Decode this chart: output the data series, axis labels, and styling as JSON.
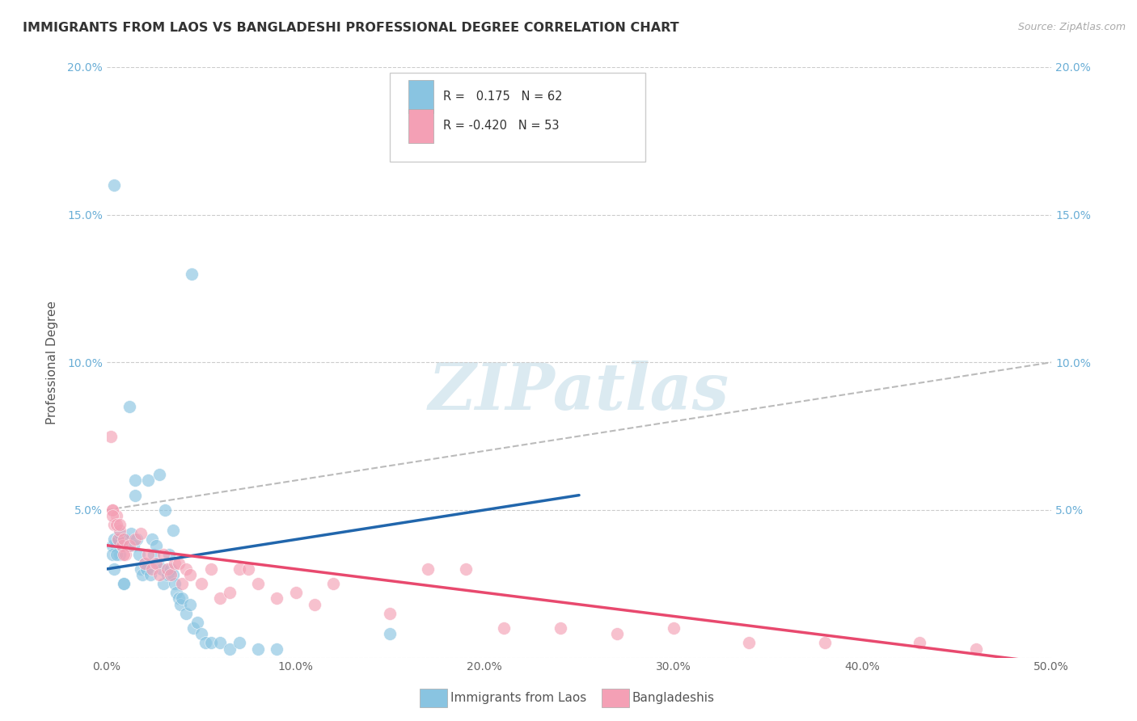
{
  "title": "IMMIGRANTS FROM LAOS VS BANGLADESHI PROFESSIONAL DEGREE CORRELATION CHART",
  "source": "Source: ZipAtlas.com",
  "ylabel": "Professional Degree",
  "xlim": [
    0.0,
    0.5
  ],
  "ylim": [
    0.0,
    0.2
  ],
  "xticks": [
    0.0,
    0.1,
    0.2,
    0.3,
    0.4,
    0.5
  ],
  "yticks": [
    0.0,
    0.05,
    0.1,
    0.15,
    0.2
  ],
  "xticklabels": [
    "0.0%",
    "10.0%",
    "20.0%",
    "30.0%",
    "40.0%",
    "50.0%"
  ],
  "yticklabels": [
    "",
    "5.0%",
    "10.0%",
    "15.0%",
    "20.0%"
  ],
  "legend_label1": "Immigrants from Laos",
  "legend_label2": "Bangladeshis",
  "blue_color": "#89c4e1",
  "pink_color": "#f4a0b5",
  "blue_line_color": "#2166ac",
  "pink_line_color": "#e8496e",
  "dashed_line_color": "#bbbbbb",
  "watermark": "ZIPatlas",
  "background_color": "#ffffff",
  "grid_color": "#cccccc",
  "blue_scatter_x": [
    0.004,
    0.005,
    0.006,
    0.007,
    0.008,
    0.009,
    0.01,
    0.011,
    0.012,
    0.013,
    0.014,
    0.015,
    0.016,
    0.017,
    0.018,
    0.019,
    0.02,
    0.021,
    0.022,
    0.023,
    0.024,
    0.025,
    0.026,
    0.027,
    0.028,
    0.029,
    0.03,
    0.031,
    0.032,
    0.033,
    0.034,
    0.035,
    0.036,
    0.037,
    0.038,
    0.039,
    0.04,
    0.042,
    0.044,
    0.046,
    0.048,
    0.05,
    0.052,
    0.055,
    0.06,
    0.065,
    0.07,
    0.08,
    0.09,
    0.003,
    0.003,
    0.004,
    0.004,
    0.005,
    0.006,
    0.007,
    0.008,
    0.009,
    0.015,
    0.035,
    0.045,
    0.15
  ],
  "blue_scatter_y": [
    0.16,
    0.038,
    0.04,
    0.035,
    0.04,
    0.025,
    0.04,
    0.038,
    0.085,
    0.042,
    0.038,
    0.055,
    0.04,
    0.035,
    0.03,
    0.028,
    0.032,
    0.03,
    0.06,
    0.028,
    0.04,
    0.035,
    0.038,
    0.032,
    0.062,
    0.03,
    0.025,
    0.05,
    0.028,
    0.035,
    0.03,
    0.028,
    0.025,
    0.022,
    0.02,
    0.018,
    0.02,
    0.015,
    0.018,
    0.01,
    0.012,
    0.008,
    0.005,
    0.005,
    0.005,
    0.003,
    0.005,
    0.003,
    0.003,
    0.038,
    0.035,
    0.04,
    0.03,
    0.035,
    0.04,
    0.042,
    0.038,
    0.025,
    0.06,
    0.043,
    0.13,
    0.008
  ],
  "pink_scatter_x": [
    0.002,
    0.003,
    0.004,
    0.005,
    0.006,
    0.007,
    0.008,
    0.009,
    0.01,
    0.012,
    0.015,
    0.018,
    0.02,
    0.022,
    0.024,
    0.026,
    0.028,
    0.03,
    0.032,
    0.034,
    0.036,
    0.038,
    0.04,
    0.042,
    0.044,
    0.05,
    0.055,
    0.06,
    0.065,
    0.07,
    0.075,
    0.08,
    0.09,
    0.1,
    0.11,
    0.12,
    0.15,
    0.17,
    0.19,
    0.21,
    0.24,
    0.27,
    0.3,
    0.34,
    0.38,
    0.43,
    0.46,
    0.003,
    0.003,
    0.005,
    0.007,
    0.009
  ],
  "pink_scatter_y": [
    0.075,
    0.05,
    0.045,
    0.048,
    0.04,
    0.043,
    0.038,
    0.04,
    0.035,
    0.038,
    0.04,
    0.042,
    0.032,
    0.035,
    0.03,
    0.032,
    0.028,
    0.035,
    0.03,
    0.028,
    0.032,
    0.032,
    0.025,
    0.03,
    0.028,
    0.025,
    0.03,
    0.02,
    0.022,
    0.03,
    0.03,
    0.025,
    0.02,
    0.022,
    0.018,
    0.025,
    0.015,
    0.03,
    0.03,
    0.01,
    0.01,
    0.008,
    0.01,
    0.005,
    0.005,
    0.005,
    0.003,
    0.05,
    0.048,
    0.045,
    0.045,
    0.035
  ],
  "blue_trend_x": [
    0.0,
    0.25
  ],
  "blue_trend_y": [
    0.03,
    0.055
  ],
  "pink_trend_x": [
    0.0,
    0.5
  ],
  "pink_trend_y": [
    0.038,
    -0.002
  ],
  "dashed_trend_x": [
    0.0,
    0.5
  ],
  "dashed_trend_y": [
    0.05,
    0.1
  ]
}
